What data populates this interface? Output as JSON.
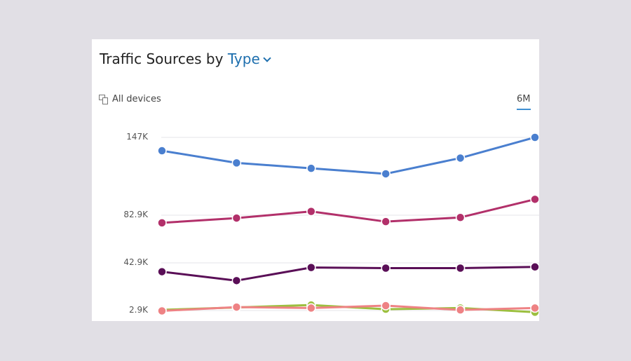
{
  "header": {
    "title_prefix": "Traffic Sources by",
    "title_dropdown": "Type"
  },
  "filters": {
    "devices_label": "All devices",
    "period_label": "6M"
  },
  "icons": {
    "devices": "devices-icon",
    "dropdown": "chevron-down-icon"
  },
  "chart_data": {
    "type": "line",
    "y_ticks": [
      {
        "value": 147000,
        "label": "147K"
      },
      {
        "value": 82900,
        "label": "82.9K"
      },
      {
        "value": 42900,
        "label": "42.9K"
      },
      {
        "value": 2900,
        "label": "2.9K"
      }
    ],
    "x": [
      1,
      2,
      3,
      4,
      5,
      6
    ],
    "grid": true,
    "series": [
      {
        "color": "#4a7fcf",
        "values": [
          136000,
          126000,
          121500,
          117000,
          130000,
          147000
        ]
      },
      {
        "color": "#b2306a",
        "values": [
          76500,
          80500,
          86000,
          77500,
          81000,
          96000
        ]
      },
      {
        "color": "#5a0f57",
        "values": [
          35500,
          28000,
          39000,
          38500,
          38500,
          39500
        ]
      },
      {
        "color": "#9cbf3f",
        "values": [
          3500,
          5500,
          7500,
          4000,
          5000,
          1500
        ]
      },
      {
        "color": "#ee8284",
        "values": [
          2600,
          5800,
          5000,
          7000,
          3400,
          5000
        ]
      }
    ]
  }
}
